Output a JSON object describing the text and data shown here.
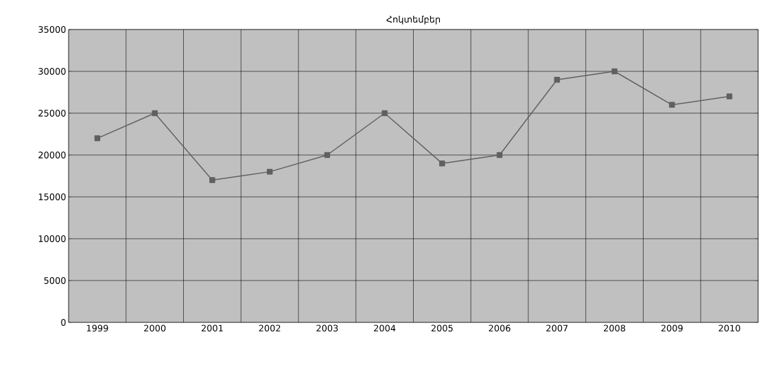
{
  "chart_data": {
    "type": "line",
    "title": "Հոկտեմբեր",
    "categories": [
      "1999",
      "2000",
      "2001",
      "2002",
      "2003",
      "2004",
      "2005",
      "2006",
      "2007",
      "2008",
      "2009",
      "2010"
    ],
    "series": [
      {
        "color": "#606060",
        "values": [
          22000,
          25000,
          17000,
          18000,
          20000,
          25000,
          19000,
          20000,
          29000,
          30000,
          26000,
          27000
        ]
      }
    ],
    "ylim": [
      0,
      35000
    ],
    "yticks": [
      0,
      5000,
      10000,
      15000,
      20000,
      25000,
      30000,
      35000
    ],
    "grid": true,
    "marker": "square",
    "line_style": "solid"
  }
}
